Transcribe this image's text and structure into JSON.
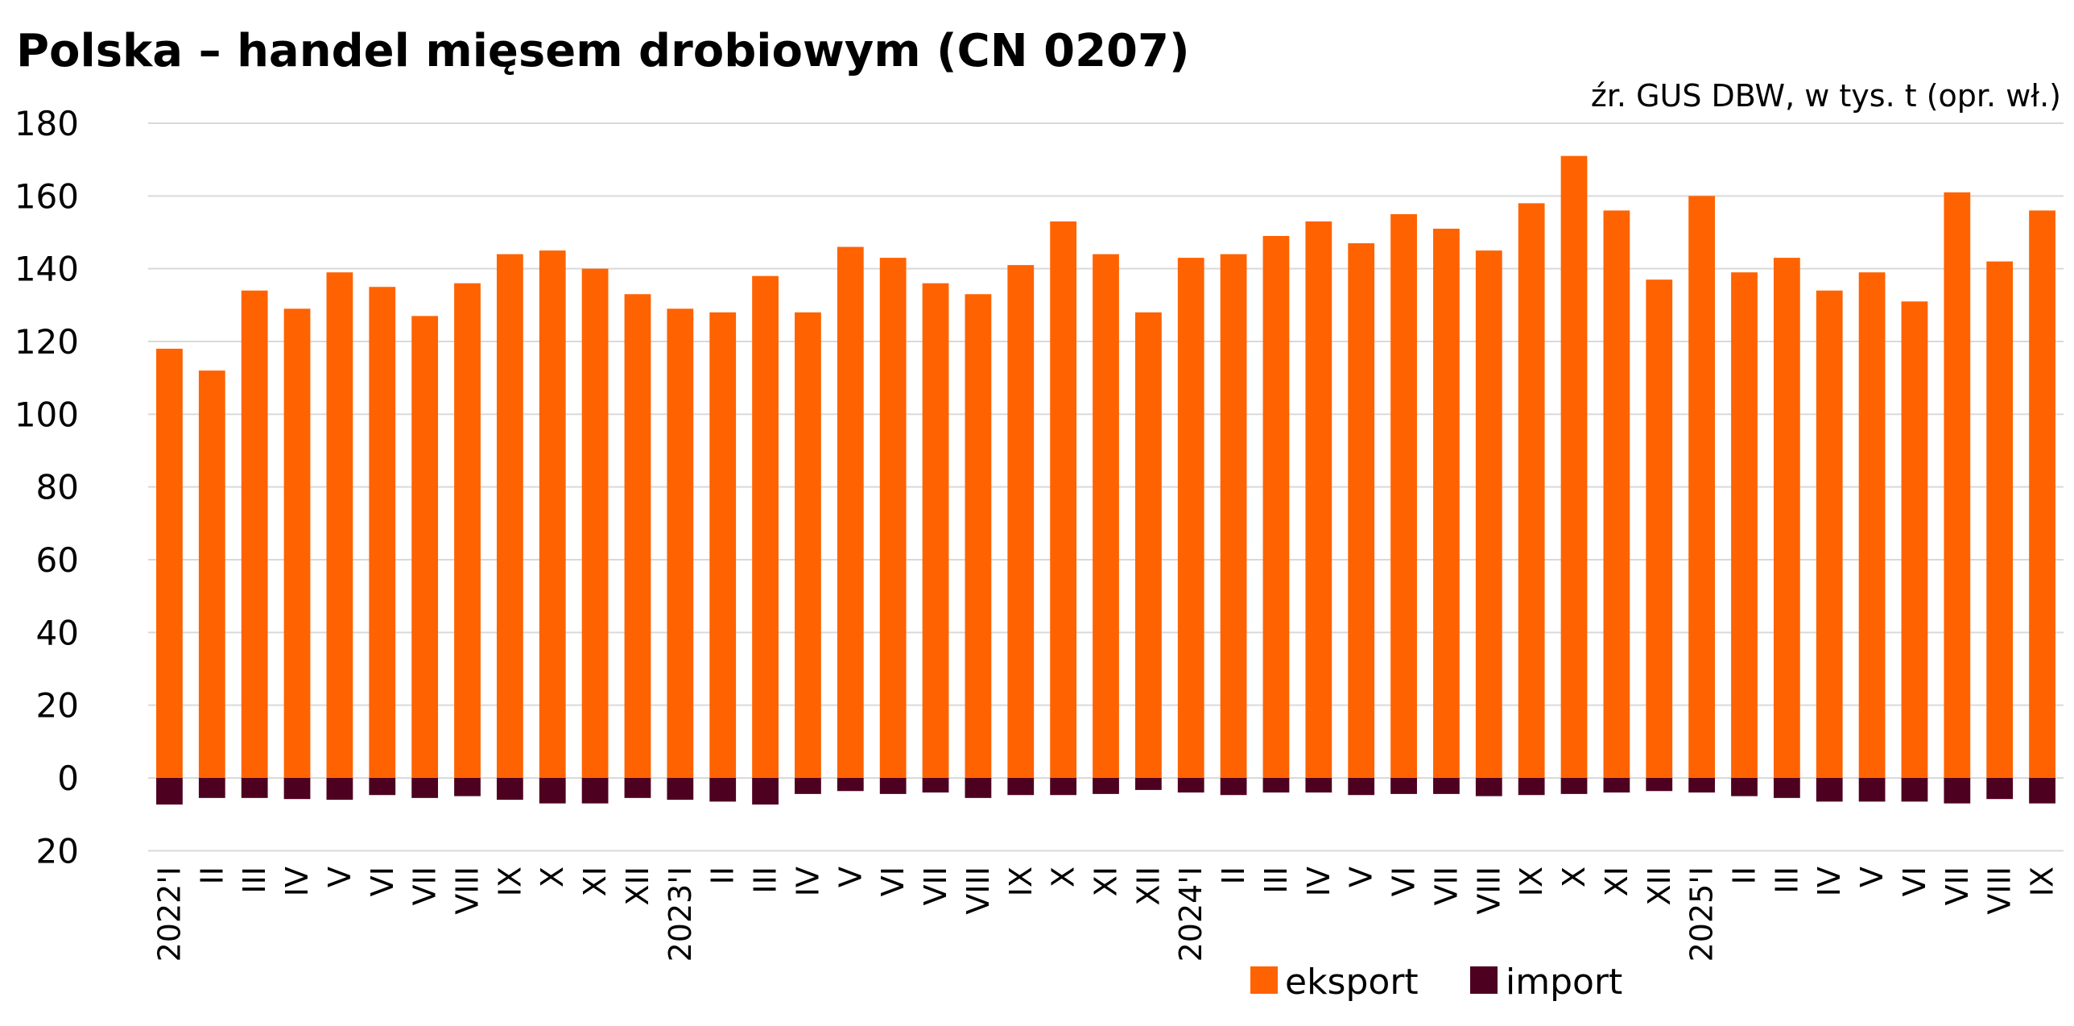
{
  "chart_data": {
    "type": "bar",
    "title": "Polska – handel mięsem drobiowym (CN 0207)",
    "subtitle": "źr. GUS DBW, w tys. t (opr. wł.)",
    "xlabel": "",
    "ylabel": "",
    "ylim": [
      -20,
      180
    ],
    "yticks": [
      180,
      160,
      140,
      120,
      100,
      80,
      60,
      40,
      20,
      0,
      -20
    ],
    "ytick_labels": [
      "180",
      "160",
      "140",
      "120",
      "100",
      "80",
      "60",
      "40",
      "20",
      "0",
      "20"
    ],
    "grid": true,
    "legend_position": "bottom-right",
    "categories": [
      "2022'I",
      "II",
      "III",
      "IV",
      "V",
      "VI",
      "VII",
      "VIII",
      "IX",
      "X",
      "XI",
      "XII",
      "2023'I",
      "II",
      "III",
      "IV",
      "V",
      "VI",
      "VII",
      "VIII",
      "IX",
      "X",
      "XI",
      "XII",
      "2024'I",
      "II",
      "III",
      "IV",
      "V",
      "VI",
      "VII",
      "VIII",
      "IX",
      "X",
      "XI",
      "XII",
      "2025'I",
      "II",
      "III",
      "IV",
      "V",
      "VI",
      "VII",
      "VIII",
      "IX"
    ],
    "series": [
      {
        "name": "eksport",
        "color": "#ff6200",
        "values": [
          118,
          112,
          134,
          129,
          139,
          135,
          127,
          136,
          144,
          145,
          140,
          133,
          129,
          128,
          138,
          128,
          146,
          143,
          136,
          133,
          141,
          153,
          144,
          128,
          143,
          144,
          149,
          153,
          147,
          155,
          151,
          145,
          158,
          171,
          156,
          137,
          160,
          139,
          143,
          134,
          139,
          131,
          161,
          142,
          156
        ]
      },
      {
        "name": "import",
        "color": "#4d0020",
        "values": [
          -7.3,
          -5.5,
          -5.5,
          -5.8,
          -6,
          -4.7,
          -5.5,
          -5,
          -6,
          -7,
          -7,
          -5.5,
          -6,
          -6.5,
          -7.3,
          -4.4,
          -3.6,
          -4.4,
          -4,
          -5.5,
          -4.7,
          -4.7,
          -4.4,
          -3.3,
          -4,
          -4.7,
          -4,
          -4,
          -4.7,
          -4.4,
          -4.4,
          -5,
          -4.7,
          -4.4,
          -4,
          -3.6,
          -4,
          -5,
          -5.5,
          -6.5,
          -6.5,
          -6.5,
          -7,
          -5.8,
          -7
        ]
      }
    ]
  }
}
